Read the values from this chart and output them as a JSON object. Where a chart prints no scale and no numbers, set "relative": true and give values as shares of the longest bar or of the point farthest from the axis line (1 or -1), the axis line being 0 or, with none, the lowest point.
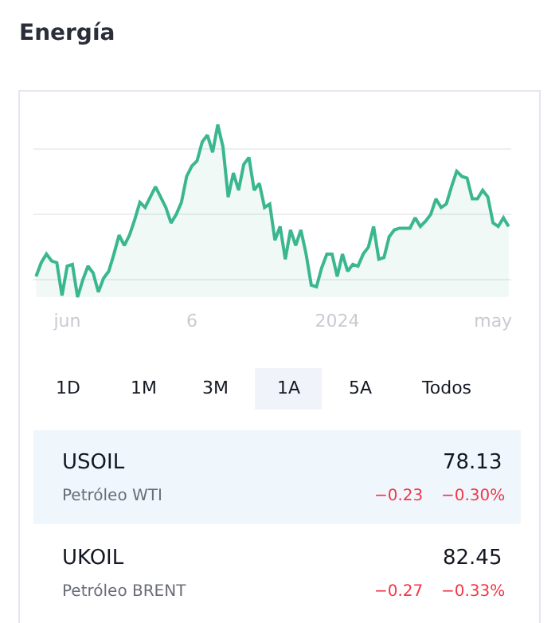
{
  "chart_data": {
    "type": "area",
    "title": "Energía",
    "relative": true,
    "grid": "y",
    "legend": false,
    "tick_labels": "x",
    "categories": [
      null,
      null,
      null,
      null,
      null,
      null,
      "jun",
      null,
      null,
      null,
      null,
      null,
      null,
      null,
      null,
      null,
      null,
      null,
      null,
      null,
      null,
      null,
      null,
      null,
      null,
      null,
      null,
      null,
      null,
      null,
      "6",
      null,
      null,
      null,
      null,
      null,
      null,
      null,
      null,
      null,
      null,
      null,
      null,
      null,
      null,
      null,
      null,
      null,
      null,
      null,
      null,
      null,
      null,
      null,
      null,
      null,
      null,
      null,
      "2024",
      null,
      null,
      null,
      null,
      null,
      null,
      null,
      null,
      null,
      null,
      null,
      null,
      null,
      null,
      null,
      null,
      null,
      null,
      null,
      null,
      null,
      null,
      null,
      null,
      null,
      null,
      null,
      null,
      null,
      "may",
      null,
      null,
      null
    ],
    "series": [
      {
        "color": "#3bb78f",
        "values": [
          0.12,
          0.2,
          0.25,
          0.21,
          0.2,
          0.01,
          0.18,
          0.19,
          0,
          0.1,
          0.18,
          0.14,
          0.03,
          0.11,
          0.15,
          0.25,
          0.36,
          0.3,
          0.36,
          0.45,
          0.55,
          0.52,
          0.58,
          0.64,
          0.58,
          0.52,
          0.43,
          0.48,
          0.55,
          0.7,
          0.76,
          0.79,
          0.9,
          0.94,
          0.84,
          1,
          0.87,
          0.58,
          0.72,
          0.62,
          0.77,
          0.81,
          0.62,
          0.66,
          0.52,
          0.54,
          0.33,
          0.41,
          0.22,
          0.39,
          0.3,
          0.39,
          0.25,
          0.07,
          0.06,
          0.17,
          0.25,
          0.25,
          0.12,
          0.25,
          0.15,
          0.19,
          0.18,
          0.25,
          0.29,
          0.41,
          0.22,
          0.23,
          0.35,
          0.39,
          0.4,
          0.4,
          0.4,
          0.46,
          0.41,
          0.44,
          0.48,
          0.57,
          0.52,
          0.54,
          0.64,
          0.73,
          0.7,
          0.69,
          0.57,
          0.57,
          0.62,
          0.58,
          0.43,
          0.41,
          0.46,
          0.41
        ]
      }
    ],
    "annotations": [
      "1D",
      "1M",
      "3M",
      "1A",
      "5A",
      "Todos",
      "USOIL",
      "78.13",
      "Petróleo WTI",
      "−0.23",
      "−0.30%",
      "UKOIL",
      "82.45",
      "Petróleo BRENT",
      "−0.27",
      "−0.33%"
    ]
  }
}
